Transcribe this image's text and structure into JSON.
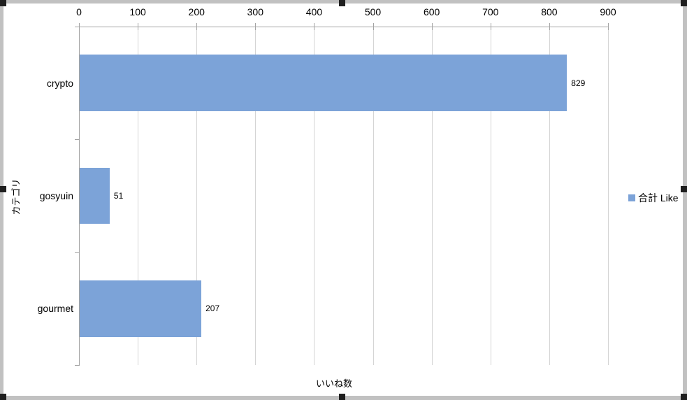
{
  "chart_data": {
    "type": "bar",
    "orientation": "horizontal",
    "title": "",
    "xlabel": "いいね数",
    "ylabel": "カテゴリ",
    "categories": [
      "crypto",
      "gosyuin",
      "gourmet"
    ],
    "series": [
      {
        "name": "合計 Like",
        "values": [
          829,
          51,
          207
        ],
        "color": "#7CA3D8"
      }
    ],
    "data_labels": [
      "829",
      "51",
      "207"
    ],
    "xlim": [
      0,
      900
    ],
    "ticks": [
      0,
      100,
      200,
      300,
      400,
      500,
      600,
      700,
      800,
      900
    ],
    "grid": true,
    "legend_position": "right",
    "gap_ratio": 1.0
  },
  "legend": {
    "items": [
      {
        "label": "合計 Like",
        "color": "#7CA3D8"
      }
    ]
  },
  "selection": {
    "frame_color": "#C1C1C1",
    "handle_color": "#1F1F1F",
    "handles": [
      "top-left",
      "top-middle",
      "top-right",
      "middle-left",
      "middle-right",
      "bottom-left",
      "bottom-middle",
      "bottom-right"
    ]
  },
  "colors": {
    "bar": "#7CA3D8",
    "gridline": "#D4D4D4",
    "axis_line": "#A3A3A3",
    "text": "#000000",
    "background": "#FFFFFF"
  }
}
